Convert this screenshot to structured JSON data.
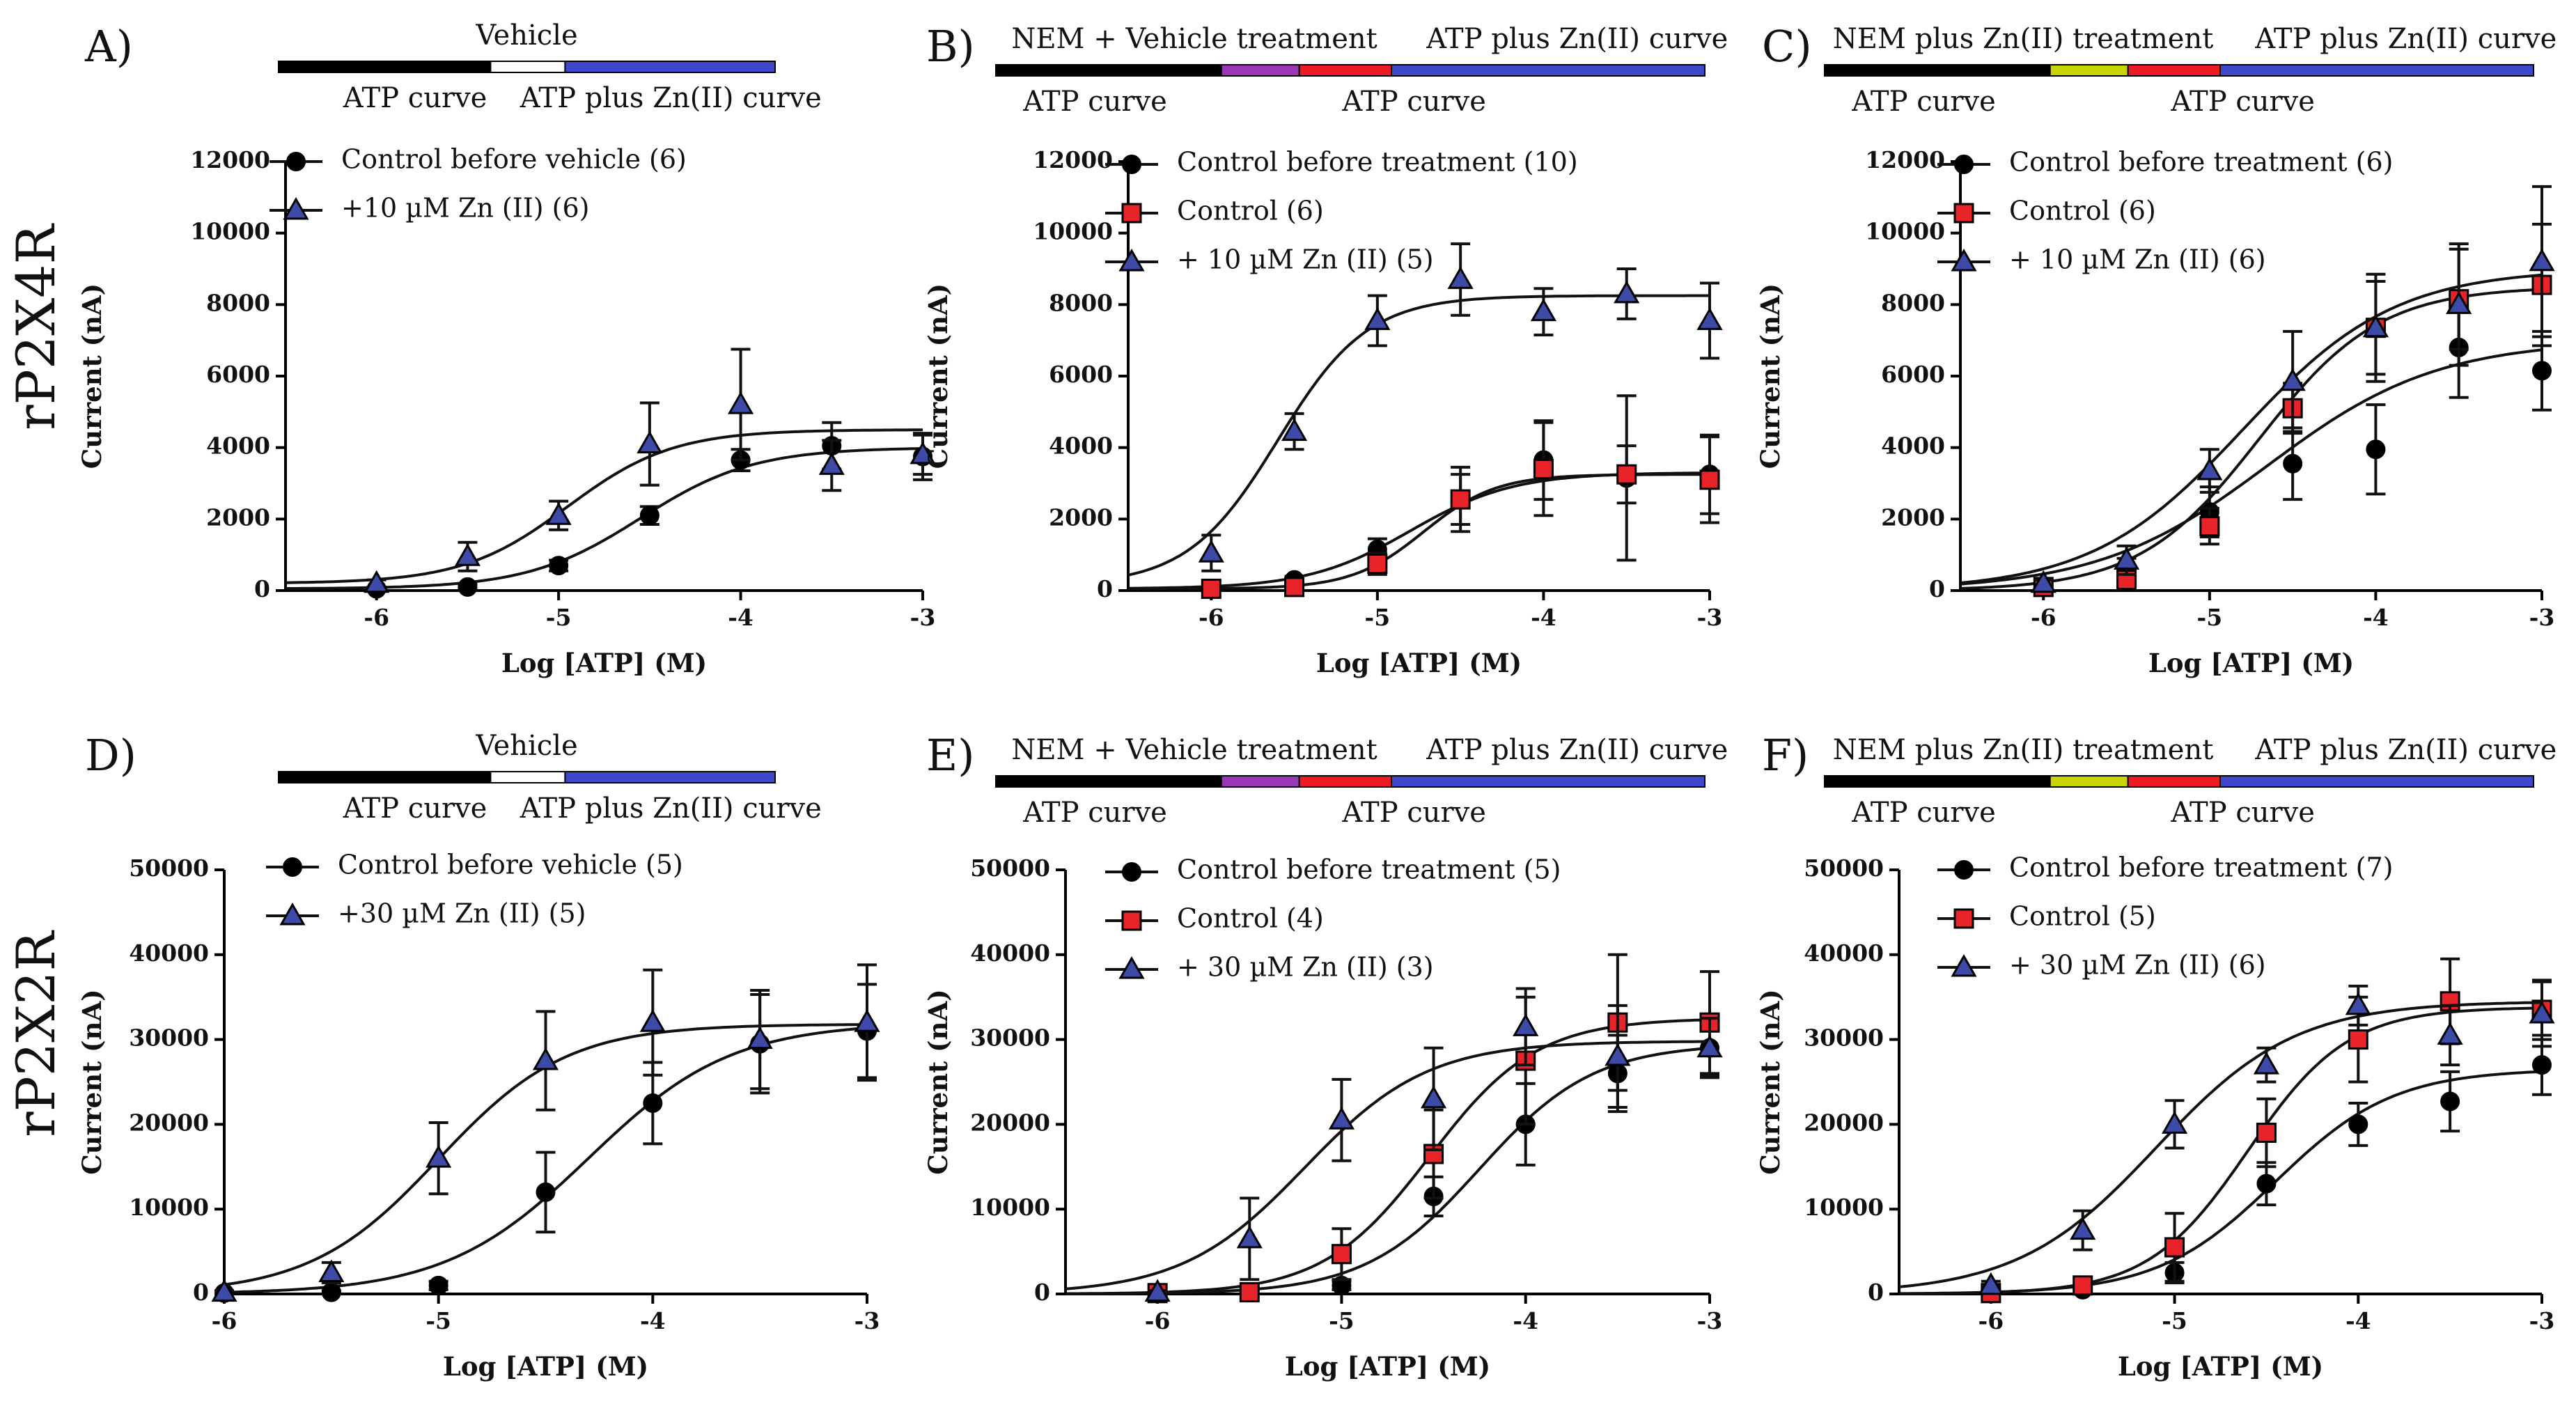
{
  "row_labels": [
    "rP2X4R",
    "rP2X2R"
  ],
  "bar_colors": {
    "black": "#000000",
    "white": "#ffffff",
    "blue": "#3f48cc",
    "purple": "#9b36b7",
    "red": "#ed1c24",
    "yellow": "#c8d400"
  },
  "series_colors": {
    "control_before": "#000000",
    "control": "#e8232a",
    "zinc": "#3d4aa8"
  },
  "chart_data": [
    {
      "id": "A",
      "type": "line",
      "panel_label": "A)",
      "title": "",
      "protocol": {
        "top_labels": [
          "Vehicle"
        ],
        "bottom_labels": [
          "ATP curve",
          "ATP plus Zn(II) curve"
        ],
        "segments": [
          "black",
          "white",
          "blue"
        ]
      },
      "xlabel": "Log [ATP] (M)",
      "ylabel": "Current (nA)",
      "xlim": [
        -6.5,
        -3
      ],
      "ylim": [
        0,
        12000
      ],
      "xticks": [
        -6,
        -5,
        -4,
        -3
      ],
      "xtick_labels": [
        "-6",
        "-5",
        "-4",
        "-3"
      ],
      "yticks": [
        0,
        2000,
        4000,
        6000,
        8000,
        10000,
        12000
      ],
      "ytick_labels": [
        "0",
        "2000",
        "4000",
        "6000",
        "8000",
        "10000",
        "12000"
      ],
      "series": [
        {
          "name": "Control before vehicle (6)",
          "marker": "circle",
          "color_key": "control_before",
          "x": [
            -6,
            -5.5,
            -5,
            -4.5,
            -4,
            -3.5,
            -3
          ],
          "y": [
            50,
            100,
            700,
            2100,
            3650,
            4050,
            3750
          ],
          "err": [
            0,
            80,
            150,
            250,
            300,
            650,
            650
          ],
          "fit": {
            "bottom": 50,
            "top": 4000,
            "logec50": -4.55,
            "hill": 1.4
          }
        },
        {
          "name": "+10 µM Zn (II) (6)",
          "marker": "triangle",
          "color_key": "zinc",
          "x": [
            -6,
            -5.5,
            -5,
            -4.5,
            -4,
            -3.5,
            -3
          ],
          "y": [
            200,
            950,
            2100,
            4100,
            5200,
            3500,
            3800
          ],
          "err": [
            100,
            400,
            400,
            1150,
            1550,
            700,
            550
          ],
          "fit": {
            "bottom": 200,
            "top": 4500,
            "logec50": -4.95,
            "hill": 1.5
          }
        }
      ]
    },
    {
      "id": "B",
      "type": "line",
      "panel_label": "B)",
      "title": "",
      "protocol": {
        "top_labels": [
          "NEM + Vehicle treatment",
          "ATP plus Zn(II) curve"
        ],
        "bottom_labels": [
          "ATP curve",
          "ATP curve"
        ],
        "segments": [
          "black",
          "purple",
          "red",
          "blue"
        ]
      },
      "xlabel": "Log [ATP] (M)",
      "ylabel": "Current (nA)",
      "xlim": [
        -6.5,
        -3
      ],
      "ylim": [
        0,
        12000
      ],
      "xticks": [
        -6,
        -5,
        -4,
        -3
      ],
      "xtick_labels": [
        "-6",
        "-5",
        "-4",
        "-3"
      ],
      "yticks": [
        0,
        2000,
        4000,
        6000,
        8000,
        10000,
        12000
      ],
      "ytick_labels": [
        "0",
        "2000",
        "4000",
        "6000",
        "8000",
        "10000",
        "12000"
      ],
      "series": [
        {
          "name": "Control before treatment (10)",
          "marker": "circle",
          "color_key": "control_before",
          "x": [
            -6,
            -5.5,
            -5,
            -4.5,
            -4,
            -3.5,
            -3
          ],
          "y": [
            50,
            300,
            1150,
            2550,
            3650,
            3150,
            3250
          ],
          "err": [
            0,
            100,
            300,
            700,
            1100,
            2300,
            1100
          ],
          "fit": {
            "bottom": 50,
            "top": 3300,
            "logec50": -4.8,
            "hill": 1.4
          }
        },
        {
          "name": "Control (6)",
          "marker": "square",
          "color_key": "control",
          "x": [
            -6,
            -5.5,
            -5,
            -4.5,
            -4,
            -3.5,
            -3
          ],
          "y": [
            50,
            100,
            750,
            2550,
            3400,
            3250,
            3100
          ],
          "err": [
            0,
            60,
            300,
            900,
            1300,
            800,
            1200
          ],
          "fit": {
            "bottom": 50,
            "top": 3250,
            "logec50": -4.72,
            "hill": 2.0
          }
        },
        {
          "name": "+ 10 µM Zn (II) (5)",
          "marker": "triangle",
          "color_key": "zinc",
          "x": [
            -6,
            -5.5,
            -5,
            -4.5,
            -4,
            -3.5,
            -3
          ],
          "y": [
            1050,
            4450,
            7550,
            8700,
            7800,
            8300,
            7550
          ],
          "err": [
            500,
            500,
            700,
            1000,
            650,
            700,
            1050
          ],
          "fit": {
            "bottom": 150,
            "top": 8250,
            "logec50": -5.6,
            "hill": 1.6
          }
        }
      ]
    },
    {
      "id": "C",
      "type": "line",
      "panel_label": "C)",
      "title": "",
      "protocol": {
        "top_labels": [
          "NEM plus Zn(II) treatment",
          "ATP plus Zn(II) curve"
        ],
        "bottom_labels": [
          "ATP curve",
          "ATP curve"
        ],
        "segments": [
          "black",
          "yellow",
          "red",
          "blue"
        ]
      },
      "xlabel": "Log [ATP] (M)",
      "ylabel": "Current (nA)",
      "xlim": [
        -6.5,
        -3
      ],
      "ylim": [
        0,
        12000
      ],
      "xticks": [
        -6,
        -5,
        -4,
        -3
      ],
      "xtick_labels": [
        "-6",
        "-5",
        "-4",
        "-3"
      ],
      "yticks": [
        0,
        2000,
        4000,
        6000,
        8000,
        10000,
        12000
      ],
      "ytick_labels": [
        "0",
        "2000",
        "4000",
        "6000",
        "8000",
        "10000",
        "12000"
      ],
      "series": [
        {
          "name": "Control before treatment (6)",
          "marker": "circle",
          "color_key": "control_before",
          "x": [
            -6,
            -5.5,
            -5,
            -4.5,
            -4,
            -3.5,
            -3
          ],
          "y": [
            100,
            600,
            2200,
            3550,
            3950,
            6800,
            6150
          ],
          "err": [
            80,
            300,
            700,
            1000,
            1250,
            1400,
            1100
          ],
          "fit": {
            "bottom": 0,
            "top": 7000,
            "logec50": -4.65,
            "hill": 0.85
          }
        },
        {
          "name": "Control (6)",
          "marker": "square",
          "color_key": "control",
          "x": [
            -6,
            -5.5,
            -5,
            -4.5,
            -4,
            -3.5,
            -3
          ],
          "y": [
            100,
            300,
            1800,
            5100,
            7350,
            8150,
            8550
          ],
          "err": [
            80,
            200,
            500,
            700,
            1300,
            1400,
            1700
          ],
          "fit": {
            "bottom": 0,
            "top": 8500,
            "logec50": -4.7,
            "hill": 1.2
          }
        },
        {
          "name": "+ 10 µM Zn (II) (6)",
          "marker": "triangle",
          "color_key": "zinc",
          "x": [
            -6,
            -5.5,
            -5,
            -4.5,
            -4,
            -3.5,
            -3
          ],
          "y": [
            200,
            850,
            3350,
            5850,
            7350,
            8000,
            9200
          ],
          "err": [
            100,
            400,
            600,
            1400,
            1500,
            1700,
            2100
          ],
          "fit": {
            "bottom": 0,
            "top": 9000,
            "logec50": -4.8,
            "hill": 0.95
          }
        }
      ]
    },
    {
      "id": "D",
      "type": "line",
      "panel_label": "D)",
      "title": "",
      "protocol": {
        "top_labels": [
          "Vehicle"
        ],
        "bottom_labels": [
          "ATP curve",
          "ATP plus Zn(II) curve"
        ],
        "segments": [
          "black",
          "white",
          "blue"
        ]
      },
      "xlabel": "Log [ATP] (M)",
      "ylabel": "Current (nA)",
      "xlim": [
        -6,
        -3
      ],
      "ylim": [
        0,
        50000
      ],
      "xticks": [
        -6,
        -5,
        -4,
        -3
      ],
      "xtick_labels": [
        "-6",
        "-5",
        "-4",
        "-3"
      ],
      "yticks": [
        0,
        10000,
        20000,
        30000,
        40000,
        50000
      ],
      "ytick_labels": [
        "0",
        "10000",
        "20000",
        "30000",
        "40000",
        "50000"
      ],
      "series": [
        {
          "name": "Control before vehicle (5)",
          "marker": "circle",
          "color_key": "control_before",
          "x": [
            -6,
            -5.5,
            -5,
            -4.5,
            -4,
            -3.5,
            -3
          ],
          "y": [
            100,
            200,
            1000,
            12000,
            22500,
            29500,
            31000
          ],
          "err": [
            0,
            200,
            500,
            4700,
            4800,
            5800,
            5500
          ],
          "fit": {
            "bottom": 0,
            "top": 32000,
            "logec50": -4.3,
            "hill": 1.3
          }
        },
        {
          "name": "+30 µM Zn (II) (5)",
          "marker": "triangle",
          "color_key": "zinc",
          "x": [
            -6,
            -5.5,
            -5,
            -4.5,
            -4,
            -3.5,
            -3
          ],
          "y": [
            200,
            2500,
            16000,
            27500,
            32000,
            30000,
            32000
          ],
          "err": [
            200,
            1200,
            4200,
            5800,
            6200,
            5800,
            6800
          ],
          "fit": {
            "bottom": 0,
            "top": 31800,
            "logec50": -5.0,
            "hill": 1.45
          }
        }
      ]
    },
    {
      "id": "E",
      "type": "line",
      "panel_label": "E)",
      "title": "",
      "protocol": {
        "top_labels": [
          "NEM + Vehicle treatment",
          "ATP plus Zn(II) curve"
        ],
        "bottom_labels": [
          "ATP curve",
          "ATP curve"
        ],
        "segments": [
          "black",
          "purple",
          "red",
          "blue"
        ]
      },
      "xlabel": "Log [ATP] (M)",
      "ylabel": "Current (nA)",
      "xlim": [
        -6.5,
        -3
      ],
      "ylim": [
        0,
        50000
      ],
      "xticks": [
        -6,
        -5,
        -4,
        -3
      ],
      "xtick_labels": [
        "-6",
        "-5",
        "-4",
        "-3"
      ],
      "yticks": [
        0,
        10000,
        20000,
        30000,
        40000,
        50000
      ],
      "ytick_labels": [
        "0",
        "10000",
        "20000",
        "30000",
        "40000",
        "50000"
      ],
      "series": [
        {
          "name": "Control before treatment (5)",
          "marker": "circle",
          "color_key": "control_before",
          "x": [
            -6,
            -5.5,
            -5,
            -4.5,
            -4,
            -3.5,
            -3
          ],
          "y": [
            100,
            200,
            1000,
            11500,
            20000,
            26000,
            29000
          ],
          "err": [
            0,
            150,
            500,
            2300,
            4800,
            4500,
            3200
          ],
          "fit": {
            "bottom": 0,
            "top": 29500,
            "logec50": -4.25,
            "hill": 1.4
          }
        },
        {
          "name": "Control (4)",
          "marker": "square",
          "color_key": "control",
          "x": [
            -6,
            -5.5,
            -5,
            -4.5,
            -4,
            -3.5,
            -3
          ],
          "y": [
            100,
            200,
            4700,
            16500,
            27500,
            32000,
            32000
          ],
          "err": [
            0,
            200,
            3000,
            5200,
            7500,
            8000,
            6000
          ],
          "fit": {
            "bottom": 0,
            "top": 32500,
            "logec50": -4.52,
            "hill": 1.5
          }
        },
        {
          "name": "+ 30 µM Zn (II) (3)",
          "marker": "triangle",
          "color_key": "zinc",
          "x": [
            -6,
            -5.5,
            -5,
            -4.5,
            -4,
            -3.5,
            -3
          ],
          "y": [
            200,
            6500,
            20500,
            23000,
            31500,
            28000,
            29000
          ],
          "err": [
            200,
            4800,
            4800,
            6000,
            4500,
            6000,
            3500
          ],
          "fit": {
            "bottom": 0,
            "top": 29800,
            "logec50": -5.2,
            "hill": 1.3
          }
        }
      ]
    },
    {
      "id": "F",
      "type": "line",
      "panel_label": "F)",
      "title": "",
      "protocol": {
        "top_labels": [
          "NEM plus Zn(II) treatment",
          "ATP plus Zn(II) curve"
        ],
        "bottom_labels": [
          "ATP curve",
          "ATP curve"
        ],
        "segments": [
          "black",
          "yellow",
          "red",
          "blue"
        ]
      },
      "xlabel": "Log [ATP] (M)",
      "ylabel": "Current (nA)",
      "xlim": [
        -6.5,
        -3
      ],
      "ylim": [
        0,
        50000
      ],
      "xticks": [
        -6,
        -5,
        -4,
        -3
      ],
      "xtick_labels": [
        "-6",
        "-5",
        "-4",
        "-3"
      ],
      "yticks": [
        0,
        10000,
        20000,
        30000,
        40000,
        50000
      ],
      "ytick_labels": [
        "0",
        "10000",
        "20000",
        "30000",
        "40000",
        "50000"
      ],
      "series": [
        {
          "name": "Control before treatment (7)",
          "marker": "circle",
          "color_key": "control_before",
          "x": [
            -6,
            -5.5,
            -5,
            -4.5,
            -4,
            -3.5,
            -3
          ],
          "y": [
            100,
            500,
            2500,
            13000,
            20000,
            22700,
            27000
          ],
          "err": [
            0,
            300,
            1200,
            2500,
            2500,
            3500,
            3500
          ],
          "fit": {
            "bottom": 0,
            "top": 26500,
            "logec50": -4.45,
            "hill": 1.35
          }
        },
        {
          "name": "Control (5)",
          "marker": "square",
          "color_key": "control",
          "x": [
            -6,
            -5.5,
            -5,
            -4.5,
            -4,
            -3.5,
            -3
          ],
          "y": [
            100,
            1000,
            5500,
            19000,
            30000,
            34500,
            33500
          ],
          "err": [
            0,
            400,
            4000,
            4000,
            5000,
            5000,
            3500
          ],
          "fit": {
            "bottom": 0,
            "top": 33800,
            "logec50": -4.6,
            "hill": 1.6
          }
        },
        {
          "name": "+ 30 µM Zn (II) (6)",
          "marker": "triangle",
          "color_key": "zinc",
          "x": [
            -6,
            -5.5,
            -5,
            -4.5,
            -4,
            -3.5,
            -3
          ],
          "y": [
            1000,
            7500,
            20000,
            27000,
            34000,
            30500,
            33000
          ],
          "err": [
            500,
            2300,
            2800,
            2000,
            2300,
            3500,
            3800
          ],
          "fit": {
            "bottom": 0,
            "top": 34500,
            "logec50": -5.1,
            "hill": 1.15
          }
        }
      ]
    }
  ]
}
